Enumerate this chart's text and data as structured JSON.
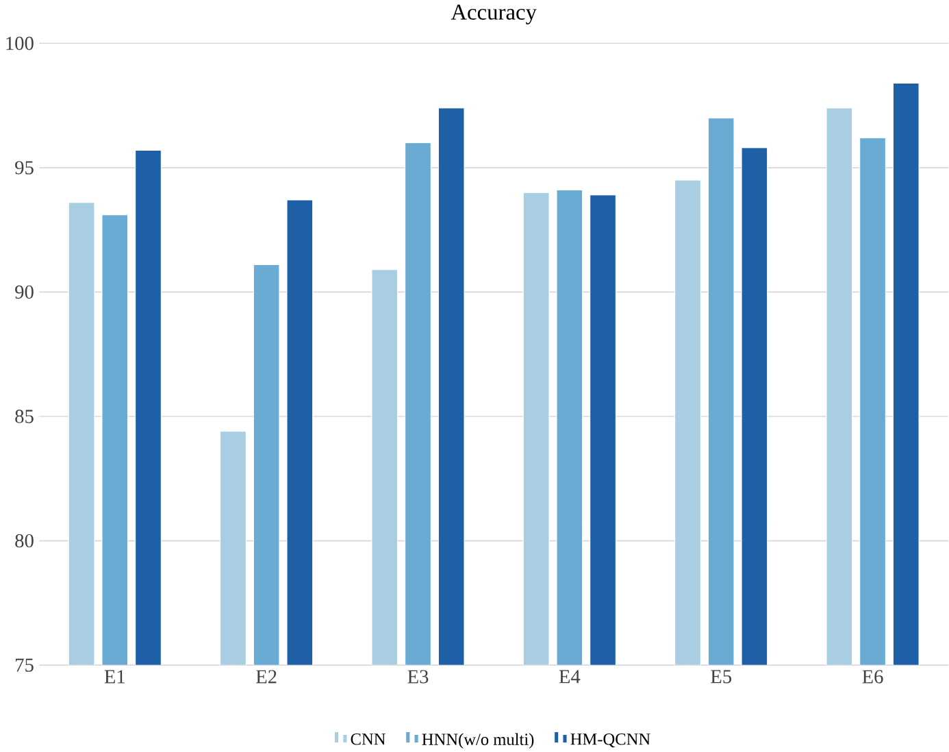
{
  "chart_data": {
    "type": "bar",
    "title": "Accuracy",
    "categories": [
      "E1",
      "E2",
      "E3",
      "E4",
      "E5",
      "E6"
    ],
    "series": [
      {
        "name": "CNN",
        "color": "#a9cde3",
        "values": [
          93.6,
          84.4,
          90.9,
          94.0,
          94.5,
          97.4
        ]
      },
      {
        "name": "HNN(w/o multi)",
        "color": "#6aabd4",
        "values": [
          93.1,
          91.1,
          96.0,
          94.1,
          97.0,
          96.2
        ]
      },
      {
        "name": "HM-QCNN",
        "color": "#1f5fa6",
        "values": [
          95.7,
          93.7,
          97.4,
          93.9,
          95.8,
          98.4
        ]
      }
    ],
    "ylim": [
      75,
      100
    ],
    "yticks": [
      75,
      80,
      85,
      90,
      95,
      100
    ],
    "grid": "y",
    "legend": "bottom"
  }
}
